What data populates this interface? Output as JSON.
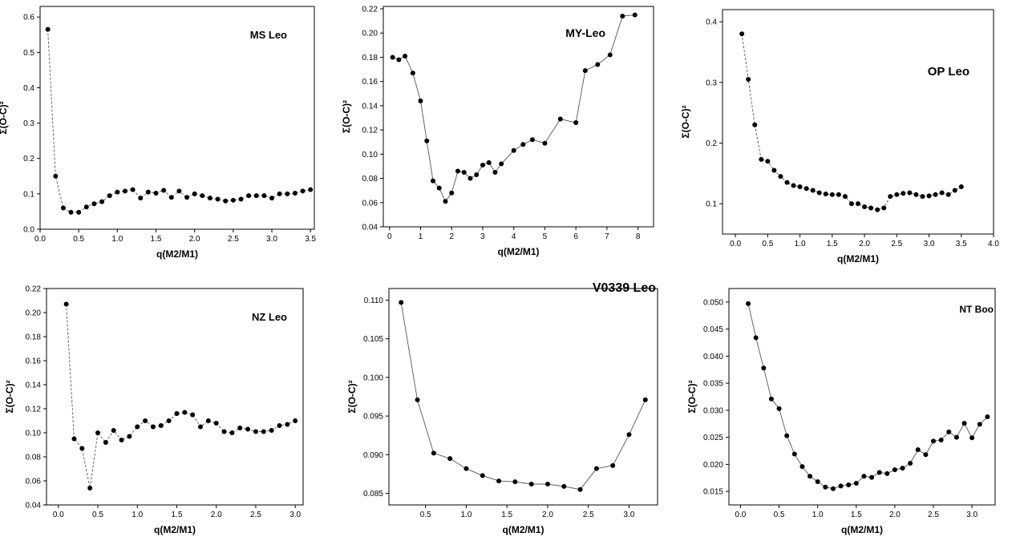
{
  "chart_data": [
    {
      "type": "line",
      "title": "MS Leo",
      "xlabel": "q(M2/M1)",
      "ylabel": "Σ(O-C)²",
      "xlim": [
        0,
        3.55
      ],
      "ylim": [
        0,
        0.63
      ],
      "xticks": [
        "0.0",
        "0.5",
        "1.0",
        "1.5",
        "2.0",
        "2.5",
        "3.0",
        "3.5"
      ],
      "yticks": [
        "0.0",
        "0.1",
        "0.2",
        "0.3",
        "0.4",
        "0.5",
        "0.6"
      ],
      "x": [
        0.1,
        0.2,
        0.3,
        0.4,
        0.5,
        0.6,
        0.7,
        0.8,
        0.9,
        1.0,
        1.1,
        1.2,
        1.3,
        1.4,
        1.5,
        1.6,
        1.7,
        1.8,
        1.9,
        2.0,
        2.1,
        2.2,
        2.3,
        2.4,
        2.5,
        2.6,
        2.7,
        2.8,
        2.9,
        3.0,
        3.1,
        3.2,
        3.3,
        3.4,
        3.5
      ],
      "y": [
        0.565,
        0.15,
        0.06,
        0.048,
        0.048,
        0.063,
        0.072,
        0.078,
        0.095,
        0.105,
        0.108,
        0.112,
        0.088,
        0.105,
        0.102,
        0.11,
        0.09,
        0.108,
        0.09,
        0.1,
        0.095,
        0.088,
        0.085,
        0.08,
        0.082,
        0.085,
        0.095,
        0.095,
        0.095,
        0.088,
        0.1,
        0.1,
        0.102,
        0.108,
        0.112
      ]
    },
    {
      "type": "line",
      "title": "MY-Leo",
      "xlabel": "q(M2/M1)",
      "ylabel": "Σ(O-C)²",
      "xlim": [
        -0.2,
        8.5
      ],
      "ylim": [
        0.04,
        0.222
      ],
      "xticks": [
        "0",
        "1",
        "2",
        "3",
        "4",
        "5",
        "6",
        "7",
        "8"
      ],
      "yticks": [
        "0.04",
        "0.06",
        "0.08",
        "0.10",
        "0.12",
        "0.14",
        "0.16",
        "0.18",
        "0.20",
        "0.22"
      ],
      "x": [
        0.1,
        0.3,
        0.5,
        0.75,
        1.0,
        1.2,
        1.4,
        1.6,
        1.8,
        2.0,
        2.2,
        2.4,
        2.6,
        2.8,
        3.0,
        3.2,
        3.4,
        3.6,
        4.0,
        4.3,
        4.6,
        5.0,
        5.5,
        6.0,
        6.3,
        6.7,
        7.1,
        7.5,
        7.9
      ],
      "y": [
        0.18,
        0.178,
        0.181,
        0.167,
        0.144,
        0.111,
        0.078,
        0.072,
        0.061,
        0.068,
        0.086,
        0.085,
        0.08,
        0.083,
        0.091,
        0.093,
        0.085,
        0.092,
        0.103,
        0.108,
        0.112,
        0.109,
        0.129,
        0.126,
        0.169,
        0.174,
        0.182,
        0.214,
        0.215
      ]
    },
    {
      "type": "line",
      "title": "OP  Leo",
      "xlabel": "q(M2/M1)",
      "ylabel": "Σ(O-C)²",
      "xlim": [
        -0.2,
        4.0
      ],
      "ylim": [
        0.05,
        0.42
      ],
      "xticks": [
        "0.0",
        "0.5",
        "1.0",
        "1.5",
        "2.0",
        "2.5",
        "3.0",
        "3.5",
        "4.0"
      ],
      "yticks": [
        "0.1",
        "0.2",
        "0.3",
        "0.4"
      ],
      "x": [
        0.1,
        0.2,
        0.3,
        0.4,
        0.5,
        0.6,
        0.7,
        0.8,
        0.9,
        1.0,
        1.1,
        1.2,
        1.3,
        1.4,
        1.5,
        1.6,
        1.7,
        1.8,
        1.9,
        2.0,
        2.1,
        2.2,
        2.3,
        2.4,
        2.5,
        2.6,
        2.7,
        2.8,
        2.9,
        3.0,
        3.1,
        3.2,
        3.3,
        3.4,
        3.5
      ],
      "y": [
        0.38,
        0.305,
        0.23,
        0.173,
        0.17,
        0.155,
        0.145,
        0.135,
        0.13,
        0.128,
        0.125,
        0.122,
        0.118,
        0.116,
        0.115,
        0.115,
        0.112,
        0.1,
        0.1,
        0.095,
        0.093,
        0.09,
        0.093,
        0.112,
        0.115,
        0.117,
        0.118,
        0.115,
        0.112,
        0.113,
        0.115,
        0.118,
        0.115,
        0.122,
        0.128
      ]
    },
    {
      "type": "line",
      "title": "NZ Leo",
      "xlabel": "q(M2/M1)",
      "ylabel": "Σ(O-C)²",
      "xlim": [
        -0.15,
        3.1
      ],
      "ylim": [
        0.04,
        0.22
      ],
      "xticks": [
        "0.0",
        "0.5",
        "1.0",
        "1.5",
        "2.0",
        "2.5",
        "3.0"
      ],
      "yticks": [
        "0.04",
        "0.06",
        "0.08",
        "0.10",
        "0.12",
        "0.14",
        "0.16",
        "0.18",
        "0.20",
        "0.22"
      ],
      "x": [
        0.1,
        0.2,
        0.3,
        0.4,
        0.5,
        0.6,
        0.7,
        0.8,
        0.9,
        1.0,
        1.1,
        1.2,
        1.3,
        1.4,
        1.5,
        1.6,
        1.7,
        1.8,
        1.9,
        2.0,
        2.1,
        2.2,
        2.3,
        2.4,
        2.5,
        2.6,
        2.7,
        2.8,
        2.9,
        3.0
      ],
      "y": [
        0.207,
        0.095,
        0.087,
        0.054,
        0.1,
        0.092,
        0.102,
        0.094,
        0.097,
        0.105,
        0.11,
        0.105,
        0.106,
        0.11,
        0.116,
        0.117,
        0.115,
        0.105,
        0.11,
        0.108,
        0.101,
        0.1,
        0.104,
        0.103,
        0.101,
        0.101,
        0.102,
        0.106,
        0.107,
        0.11
      ]
    },
    {
      "type": "line",
      "title": "V0339 Leo",
      "xlabel": "q(M2/M1)",
      "ylabel": "Σ(O-C)²",
      "xlim": [
        0.05,
        3.35
      ],
      "ylim": [
        0.0835,
        0.1115
      ],
      "xticks": [
        "0.5",
        "1.0",
        "1.5",
        "2.0",
        "2.5",
        "3.0"
      ],
      "yticks": [
        "0.085",
        "0.090",
        "0.095",
        "0.100",
        "0.105",
        "0.110"
      ],
      "x": [
        0.2,
        0.4,
        0.6,
        0.8,
        1.0,
        1.2,
        1.4,
        1.6,
        1.8,
        2.0,
        2.2,
        2.4,
        2.6,
        2.8,
        3.0,
        3.2
      ],
      "y": [
        0.1097,
        0.0971,
        0.0902,
        0.0895,
        0.0882,
        0.0873,
        0.0866,
        0.0865,
        0.0862,
        0.0862,
        0.0859,
        0.0855,
        0.0882,
        0.0886,
        0.0926,
        0.0971
      ]
    },
    {
      "type": "line",
      "title": "NT Boo",
      "xlabel": "q(M2/M1)",
      "ylabel": "Σ(O-C)²",
      "xlim": [
        -0.15,
        3.3
      ],
      "ylim": [
        0.0125,
        0.0525
      ],
      "xticks": [
        "0.0",
        "0.5",
        "1.0",
        "1.5",
        "2.0",
        "2.5",
        "3.0"
      ],
      "yticks": [
        "0.015",
        "0.020",
        "0.025",
        "0.030",
        "0.035",
        "0.040",
        "0.045",
        "0.050"
      ],
      "x": [
        0.1,
        0.2,
        0.3,
        0.4,
        0.5,
        0.6,
        0.7,
        0.8,
        0.9,
        1.0,
        1.1,
        1.2,
        1.3,
        1.4,
        1.5,
        1.6,
        1.7,
        1.8,
        1.9,
        2.0,
        2.1,
        2.2,
        2.3,
        2.4,
        2.5,
        2.6,
        2.7,
        2.8,
        2.9,
        3.0,
        3.1,
        3.2
      ],
      "y": [
        0.0497,
        0.0434,
        0.0378,
        0.0321,
        0.0303,
        0.0253,
        0.0219,
        0.0196,
        0.0178,
        0.0168,
        0.0158,
        0.0155,
        0.016,
        0.0162,
        0.0165,
        0.0178,
        0.0176,
        0.0185,
        0.0183,
        0.019,
        0.0193,
        0.0202,
        0.0227,
        0.0218,
        0.0243,
        0.0245,
        0.026,
        0.025,
        0.0276,
        0.0249,
        0.0274,
        0.0288
      ]
    }
  ]
}
